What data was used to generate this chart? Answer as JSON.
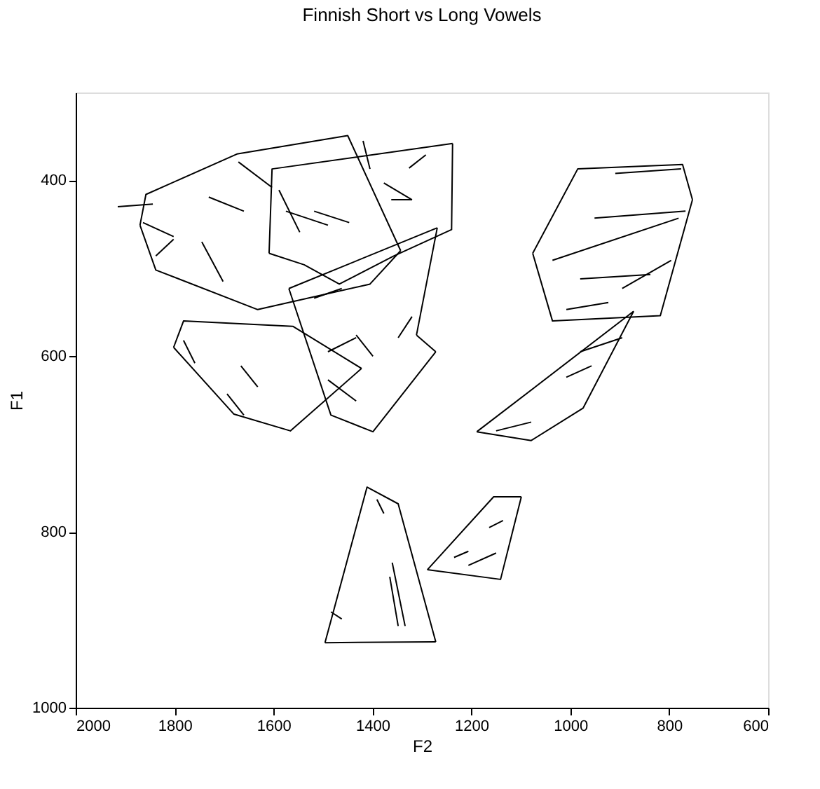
{
  "chart_data": {
    "type": "line",
    "title": "Finnish Short vs Long Vowels",
    "xlabel": "F2",
    "ylabel": "F1",
    "xlim": [
      2000,
      600
    ],
    "ylim": [
      1000,
      300
    ],
    "xticks": [
      2000,
      1800,
      1600,
      1400,
      1200,
      1000,
      800,
      600
    ],
    "yticks": [
      400,
      600,
      800,
      1000
    ],
    "grid": false,
    "marker": "none",
    "line_style": "solid",
    "series": [
      {
        "color": "#000000",
        "x": [
          1870,
          1858,
          1674,
          1450,
          1343
        ],
        "values": [
          451,
          416,
          370,
          349,
          480
        ]
      },
      {
        "color": "#000000",
        "x": [
          1343,
          1405,
          1632,
          1838,
          1870
        ],
        "values": [
          480,
          518,
          547,
          502,
          451
        ]
      },
      {
        "color": "#000000",
        "x": [
          1609,
          1603,
          1238
        ],
        "values": [
          483,
          387,
          358
        ]
      },
      {
        "color": "#000000",
        "x": [
          1238,
          1240,
          1357,
          1467,
          1538,
          1609
        ],
        "values": [
          358,
          456,
          486,
          518,
          496,
          483
        ]
      },
      {
        "color": "#000000",
        "x": [
          1569,
          1269
        ],
        "values": [
          523,
          454
        ]
      },
      {
        "color": "#000000",
        "x": [
          1269,
          1311
        ],
        "values": [
          454,
          576
        ]
      },
      {
        "color": "#000000",
        "x": [
          1311,
          1272
        ],
        "values": [
          576,
          595
        ]
      },
      {
        "color": "#000000",
        "x": [
          1272,
          1399,
          1484,
          1569
        ],
        "values": [
          595,
          686,
          667,
          523
        ]
      },
      {
        "color": "#000000",
        "x": [
          1802,
          1782,
          1561,
          1422
        ],
        "values": [
          590,
          560,
          566,
          614
        ]
      },
      {
        "color": "#000000",
        "x": [
          1422,
          1566,
          1680,
          1802
        ],
        "values": [
          614,
          685,
          666,
          590
        ]
      },
      {
        "color": "#000000",
        "x": [
          1076,
          985,
          773,
          753
        ],
        "values": [
          483,
          387,
          382,
          422
        ]
      },
      {
        "color": "#000000",
        "x": [
          753,
          818,
          1036,
          1076
        ],
        "values": [
          422,
          554,
          560,
          483
        ]
      },
      {
        "color": "#000000",
        "x": [
          872,
          974,
          1079,
          1189
        ],
        "values": [
          549,
          659,
          696,
          686
        ]
      },
      {
        "color": "#000000",
        "x": [
          1189,
          872
        ],
        "values": [
          686,
          549
        ]
      },
      {
        "color": "#000000",
        "x": [
          1496,
          1411,
          1348,
          1272
        ],
        "values": [
          926,
          749,
          768,
          925
        ]
      },
      {
        "color": "#000000",
        "x": [
          1272,
          1496
        ],
        "values": [
          925,
          926
        ]
      },
      {
        "color": "#000000",
        "x": [
          1289,
          1155,
          1099
        ],
        "values": [
          843,
          760,
          760
        ]
      },
      {
        "color": "#000000",
        "x": [
          1099,
          1141,
          1289
        ],
        "values": [
          760,
          854,
          843
        ]
      },
      {
        "color": "#000000",
        "x": [
          1844,
          1915
        ],
        "values": [
          427,
          430
        ]
      },
      {
        "color": "#000000",
        "x": [
          1802,
          1864
        ],
        "values": [
          464,
          448
        ]
      },
      {
        "color": "#000000",
        "x": [
          1802,
          1838
        ],
        "values": [
          467,
          486
        ]
      },
      {
        "color": "#000000",
        "x": [
          1702,
          1745
        ],
        "values": [
          515,
          470
        ]
      },
      {
        "color": "#000000",
        "x": [
          1660,
          1731
        ],
        "values": [
          435,
          419
        ]
      },
      {
        "color": "#000000",
        "x": [
          1603,
          1671
        ],
        "values": [
          408,
          379
        ]
      },
      {
        "color": "#000000",
        "x": [
          1547,
          1589
        ],
        "values": [
          459,
          411
        ]
      },
      {
        "color": "#000000",
        "x": [
          1490,
          1575
        ],
        "values": [
          451,
          435
        ]
      },
      {
        "color": "#000000",
        "x": [
          1447,
          1518
        ],
        "values": [
          448,
          435
        ]
      },
      {
        "color": "#000000",
        "x": [
          1405,
          1419
        ],
        "values": [
          387,
          355
        ]
      },
      {
        "color": "#000000",
        "x": [
          1320,
          1362
        ],
        "values": [
          422,
          422
        ]
      },
      {
        "color": "#000000",
        "x": [
          1326,
          1292
        ],
        "values": [
          386,
          371
        ]
      },
      {
        "color": "#000000",
        "x": [
          1377,
          1320
        ],
        "values": [
          403,
          422
        ]
      },
      {
        "color": "#000000",
        "x": [
          1462,
          1518
        ],
        "values": [
          523,
          534
        ]
      },
      {
        "color": "#000000",
        "x": [
          1433,
          1490
        ],
        "values": [
          579,
          595
        ]
      },
      {
        "color": "#000000",
        "x": [
          1399,
          1433
        ],
        "values": [
          600,
          576
        ]
      },
      {
        "color": "#000000",
        "x": [
          1348,
          1320
        ],
        "values": [
          579,
          555
        ]
      },
      {
        "color": "#000000",
        "x": [
          1433,
          1490
        ],
        "values": [
          651,
          627
        ]
      },
      {
        "color": "#000000",
        "x": [
          1759,
          1782
        ],
        "values": [
          608,
          582
        ]
      },
      {
        "color": "#000000",
        "x": [
          1632,
          1666
        ],
        "values": [
          635,
          611
        ]
      },
      {
        "color": "#000000",
        "x": [
          1660,
          1694
        ],
        "values": [
          667,
          643
        ]
      },
      {
        "color": "#000000",
        "x": [
          1036,
          781
        ],
        "values": [
          491,
          443
        ]
      },
      {
        "color": "#000000",
        "x": [
          951,
          767
        ],
        "values": [
          443,
          435
        ]
      },
      {
        "color": "#000000",
        "x": [
          980,
          838
        ],
        "values": [
          512,
          507
        ]
      },
      {
        "color": "#000000",
        "x": [
          895,
          796
        ],
        "values": [
          523,
          491
        ]
      },
      {
        "color": "#000000",
        "x": [
          1008,
          923
        ],
        "values": [
          547,
          539
        ]
      },
      {
        "color": "#000000",
        "x": [
          909,
          776
        ],
        "values": [
          392,
          387
        ]
      },
      {
        "color": "#000000",
        "x": [
          980,
          895
        ],
        "values": [
          595,
          579
        ]
      },
      {
        "color": "#000000",
        "x": [
          1008,
          957
        ],
        "values": [
          624,
          611
        ]
      },
      {
        "color": "#000000",
        "x": [
          1150,
          1079
        ],
        "values": [
          685,
          675
        ]
      },
      {
        "color": "#000000",
        "x": [
          1377,
          1391
        ],
        "values": [
          779,
          763
        ]
      },
      {
        "color": "#000000",
        "x": [
          1348,
          1365
        ],
        "values": [
          907,
          851
        ]
      },
      {
        "color": "#000000",
        "x": [
          1334,
          1360
        ],
        "values": [
          907,
          835
        ]
      },
      {
        "color": "#000000",
        "x": [
          1462,
          1484
        ],
        "values": [
          899,
          891
        ]
      },
      {
        "color": "#000000",
        "x": [
          1235,
          1206
        ],
        "values": [
          829,
          822
        ]
      },
      {
        "color": "#000000",
        "x": [
          1164,
          1136
        ],
        "values": [
          795,
          787
        ]
      },
      {
        "color": "#000000",
        "x": [
          1206,
          1150
        ],
        "values": [
          838,
          824
        ]
      }
    ]
  }
}
